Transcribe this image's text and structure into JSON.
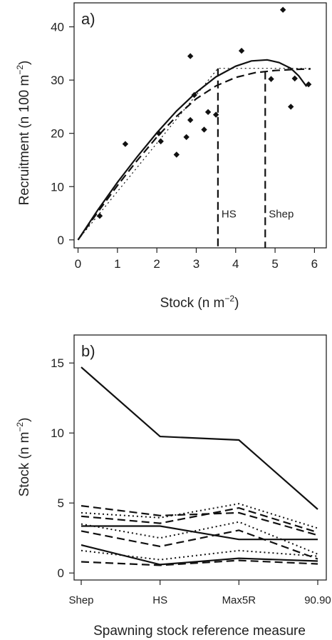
{
  "chart_data": [
    {
      "type": "scatter",
      "panel_label": "a)",
      "xlabel": "Stock (n m",
      "xlabel_sup": "−2",
      "xlabel_end": ")",
      "ylabel": "Recruitment (n 100 m",
      "ylabel_sup": "−2",
      "ylabel_end": ")",
      "xlim": [
        -0.1,
        6.3
      ],
      "ylim": [
        -1.5,
        44.5
      ],
      "xticks": [
        0,
        1,
        2,
        3,
        4,
        5,
        6
      ],
      "yticks": [
        0,
        10,
        20,
        30,
        40
      ],
      "points": [
        {
          "x": 0.55,
          "y": 4.5
        },
        {
          "x": 1.2,
          "y": 18
        },
        {
          "x": 2.05,
          "y": 20
        },
        {
          "x": 2.1,
          "y": 18.5
        },
        {
          "x": 2.5,
          "y": 16
        },
        {
          "x": 2.75,
          "y": 19.3
        },
        {
          "x": 2.85,
          "y": 22.5
        },
        {
          "x": 2.85,
          "y": 34.5
        },
        {
          "x": 2.95,
          "y": 27.2
        },
        {
          "x": 3.2,
          "y": 20.7
        },
        {
          "x": 3.3,
          "y": 24
        },
        {
          "x": 3.5,
          "y": 23.5
        },
        {
          "x": 4.15,
          "y": 35.5
        },
        {
          "x": 4.9,
          "y": 30.2
        },
        {
          "x": 5.2,
          "y": 43.2
        },
        {
          "x": 5.4,
          "y": 25
        },
        {
          "x": 5.5,
          "y": 30.3
        },
        {
          "x": 5.85,
          "y": 29.2
        }
      ],
      "series": [
        {
          "style": "solid",
          "x": [
            0,
            0.5,
            1,
            1.5,
            2,
            2.5,
            3,
            3.5,
            4,
            4.4,
            4.8,
            5.1,
            5.4,
            5.6,
            5.8
          ],
          "y": [
            0,
            5.6,
            10.8,
            15.6,
            20.1,
            24.2,
            27.7,
            30.6,
            32.6,
            33.6,
            33.8,
            33.3,
            32.2,
            30.8,
            28.8
          ]
        },
        {
          "style": "dashed",
          "x": [
            0,
            0.5,
            1,
            1.5,
            2,
            2.5,
            3,
            3.5,
            4,
            4.5,
            5,
            5.5,
            5.9
          ],
          "y": [
            0,
            5.2,
            10.2,
            14.9,
            19.3,
            23.2,
            26.5,
            28.9,
            30.5,
            31.4,
            31.8,
            32,
            32.1
          ]
        },
        {
          "style": "dotted",
          "x": [
            0,
            3.55,
            5.9
          ],
          "y": [
            0,
            32.2,
            32.2
          ]
        }
      ],
      "reference_lines": [
        {
          "label": "HS",
          "x": 3.55,
          "y_top": 32.2
        },
        {
          "label": "Shep",
          "x": 4.75,
          "y_top": 31.6
        }
      ]
    },
    {
      "type": "line",
      "panel_label": "b)",
      "xlabel": "Spawning stock reference measure",
      "ylabel": "Stock (n m",
      "ylabel_sup": "−2",
      "ylabel_end": ")",
      "categories": [
        "Shep",
        "HS",
        "Max5R",
        "90.90"
      ],
      "ylim": [
        -0.5,
        17
      ],
      "yticks": [
        0,
        5,
        10,
        15
      ],
      "series": [
        {
          "style": "solid",
          "values": [
            14.7,
            9.75,
            9.5,
            4.55
          ]
        },
        {
          "style": "solid",
          "values": [
            3.35,
            3.35,
            2.4,
            2.4
          ]
        },
        {
          "style": "solid",
          "values": [
            2.0,
            0.6,
            1.05,
            0.85
          ]
        },
        {
          "style": "dashed",
          "values": [
            4.8,
            4.1,
            4.3,
            2.7
          ]
        },
        {
          "style": "dashed",
          "values": [
            4.05,
            3.55,
            4.65,
            2.9
          ]
        },
        {
          "style": "dashed",
          "values": [
            3.0,
            1.9,
            3.05,
            1.0
          ]
        },
        {
          "style": "dashed",
          "values": [
            0.8,
            0.55,
            0.9,
            0.65
          ]
        },
        {
          "style": "dotted",
          "values": [
            4.3,
            3.95,
            4.95,
            3.2
          ]
        },
        {
          "style": "dotted",
          "values": [
            3.5,
            2.5,
            3.65,
            1.35
          ]
        },
        {
          "style": "dotted",
          "values": [
            1.6,
            0.95,
            1.6,
            1.2
          ]
        }
      ]
    }
  ]
}
